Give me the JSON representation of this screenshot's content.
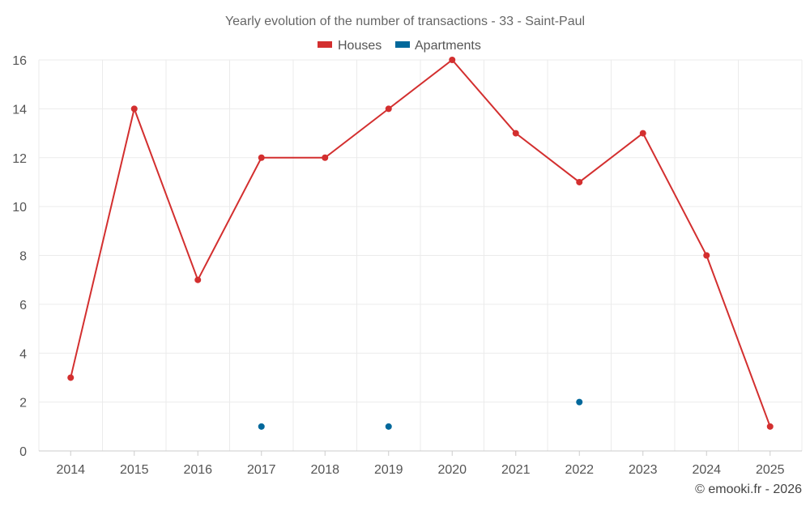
{
  "chart_data": {
    "type": "line",
    "title": "Yearly evolution of the number of transactions - 33 - Saint-Paul",
    "categories": [
      "2014",
      "2015",
      "2016",
      "2017",
      "2018",
      "2019",
      "2020",
      "2021",
      "2022",
      "2023",
      "2024",
      "2025"
    ],
    "series": [
      {
        "name": "Houses",
        "color": "#d32f2f",
        "values": [
          3,
          14,
          7,
          12,
          12,
          14,
          16,
          13,
          11,
          13,
          8,
          1
        ]
      },
      {
        "name": "Apartments",
        "color": "#01689b",
        "values": [
          null,
          null,
          null,
          1,
          null,
          1,
          null,
          null,
          2,
          null,
          null,
          null
        ]
      }
    ],
    "ylim": [
      0,
      16
    ],
    "yticks": [
      0,
      2,
      4,
      6,
      8,
      10,
      12,
      14,
      16
    ],
    "grid": true,
    "legend_position": "top-center",
    "xlabel": "",
    "ylabel": ""
  },
  "credit": "© emooki.fr - 2026"
}
